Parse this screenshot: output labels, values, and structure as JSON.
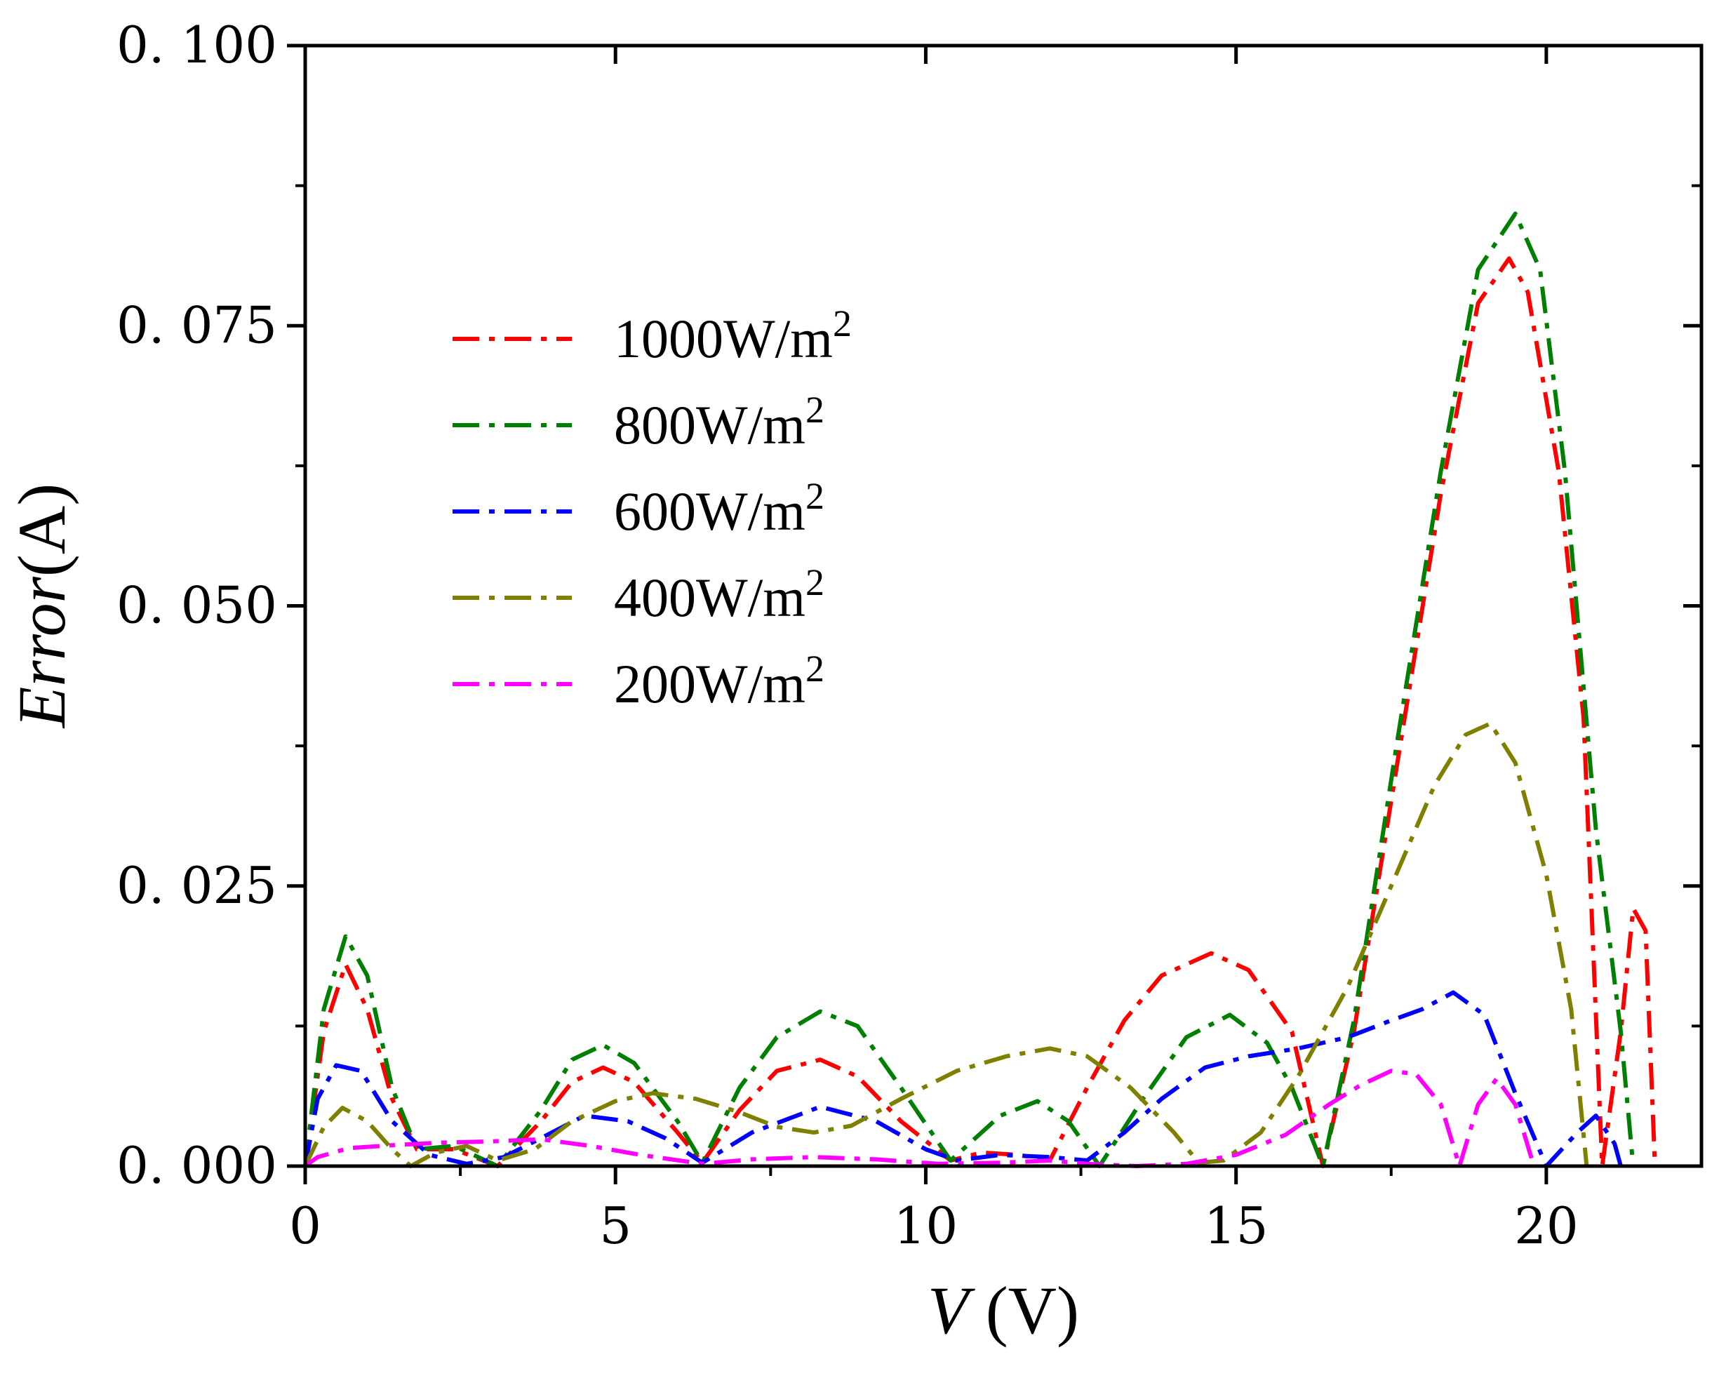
{
  "chart_data": {
    "type": "line",
    "title": "",
    "xlabel": {
      "var": "V",
      "unit": " (V)"
    },
    "ylabel": {
      "var": "Error",
      "unit": "(A)"
    },
    "xlim": [
      0,
      22.5
    ],
    "ylim": [
      0,
      0.1
    ],
    "xticks": [
      0,
      5,
      10,
      15,
      20
    ],
    "xtick_labels": [
      "0",
      "5",
      "10",
      "15",
      "20"
    ],
    "yticks": [
      0,
      0.025,
      0.05,
      0.075,
      0.1
    ],
    "ytick_labels": [
      "0. 000",
      "0. 025",
      "0. 050",
      "0. 075",
      "0. 100"
    ],
    "grid": false,
    "legend_position": "upper-left",
    "line_style": "dash-dot",
    "series": [
      {
        "name": "1000W/m2",
        "label_base": "1000W/m",
        "label_sup": "2",
        "color": "#ff0000",
        "points": [
          [
            0,
            0.0
          ],
          [
            0.3,
            0.012
          ],
          [
            0.65,
            0.018
          ],
          [
            1.0,
            0.014
          ],
          [
            1.4,
            0.006
          ],
          [
            1.8,
            0.0015
          ],
          [
            2.4,
            0.0015
          ],
          [
            3.1,
            0.0
          ],
          [
            3.8,
            0.004
          ],
          [
            4.3,
            0.0075
          ],
          [
            4.8,
            0.0088
          ],
          [
            5.3,
            0.0075
          ],
          [
            6.0,
            0.003
          ],
          [
            6.4,
            0.0003
          ],
          [
            7.0,
            0.005
          ],
          [
            7.6,
            0.0085
          ],
          [
            8.3,
            0.0095
          ],
          [
            8.9,
            0.008
          ],
          [
            9.6,
            0.004
          ],
          [
            10.4,
            0.0005
          ],
          [
            10.9,
            0.0012
          ],
          [
            11.5,
            0.001
          ],
          [
            12.0,
            0.0005
          ],
          [
            12.6,
            0.007
          ],
          [
            13.2,
            0.013
          ],
          [
            13.8,
            0.017
          ],
          [
            14.6,
            0.019
          ],
          [
            15.2,
            0.0175
          ],
          [
            15.9,
            0.012
          ],
          [
            16.4,
            0.0
          ],
          [
            16.9,
            0.012
          ],
          [
            17.6,
            0.036
          ],
          [
            18.3,
            0.06
          ],
          [
            18.9,
            0.077
          ],
          [
            19.4,
            0.081
          ],
          [
            19.7,
            0.078
          ],
          [
            20.2,
            0.062
          ],
          [
            20.6,
            0.04
          ],
          [
            20.9,
            0.0
          ],
          [
            21.2,
            0.012
          ],
          [
            21.4,
            0.023
          ],
          [
            21.6,
            0.021
          ],
          [
            21.75,
            0.0
          ]
        ]
      },
      {
        "name": "800W/m2",
        "label_base": "800W/m",
        "label_sup": "2",
        "color": "#008000",
        "points": [
          [
            0,
            0.0
          ],
          [
            0.3,
            0.014
          ],
          [
            0.65,
            0.0205
          ],
          [
            1.0,
            0.017
          ],
          [
            1.4,
            0.007
          ],
          [
            1.8,
            0.0015
          ],
          [
            2.4,
            0.0018
          ],
          [
            3.1,
            0.0
          ],
          [
            3.8,
            0.005
          ],
          [
            4.3,
            0.0095
          ],
          [
            4.8,
            0.0108
          ],
          [
            5.3,
            0.0092
          ],
          [
            6.0,
            0.004
          ],
          [
            6.4,
            0.0003
          ],
          [
            7.0,
            0.007
          ],
          [
            7.6,
            0.0115
          ],
          [
            8.3,
            0.0138
          ],
          [
            8.9,
            0.0125
          ],
          [
            9.6,
            0.007
          ],
          [
            10.4,
            0.0005
          ],
          [
            11.2,
            0.0045
          ],
          [
            11.8,
            0.0058
          ],
          [
            12.3,
            0.004
          ],
          [
            12.8,
            0.0
          ],
          [
            13.5,
            0.006
          ],
          [
            14.2,
            0.0115
          ],
          [
            14.9,
            0.0135
          ],
          [
            15.5,
            0.011
          ],
          [
            15.9,
            0.007
          ],
          [
            16.4,
            0.0
          ],
          [
            16.9,
            0.013
          ],
          [
            17.6,
            0.038
          ],
          [
            18.3,
            0.062
          ],
          [
            18.9,
            0.08
          ],
          [
            19.5,
            0.085
          ],
          [
            19.9,
            0.08
          ],
          [
            20.3,
            0.062
          ],
          [
            20.8,
            0.03
          ],
          [
            21.2,
            0.012
          ],
          [
            21.4,
            0.0
          ]
        ]
      },
      {
        "name": "600W/m2",
        "label_base": "600W/m",
        "label_sup": "2",
        "color": "#0000ff",
        "points": [
          [
            0,
            0.0
          ],
          [
            0.2,
            0.006
          ],
          [
            0.5,
            0.009
          ],
          [
            0.9,
            0.0085
          ],
          [
            1.4,
            0.004
          ],
          [
            2.0,
            0.001
          ],
          [
            2.6,
            0.0002
          ],
          [
            3.2,
            0.0008
          ],
          [
            3.8,
            0.0025
          ],
          [
            4.5,
            0.0045
          ],
          [
            5.2,
            0.004
          ],
          [
            5.8,
            0.0025
          ],
          [
            6.4,
            0.0003
          ],
          [
            7.2,
            0.003
          ],
          [
            8.3,
            0.0053
          ],
          [
            9.2,
            0.004
          ],
          [
            10.0,
            0.0015
          ],
          [
            10.5,
            0.0005
          ],
          [
            11.2,
            0.001
          ],
          [
            12.0,
            0.0008
          ],
          [
            12.6,
            0.0005
          ],
          [
            13.2,
            0.003
          ],
          [
            13.8,
            0.006
          ],
          [
            14.5,
            0.0088
          ],
          [
            15.2,
            0.0098
          ],
          [
            16.0,
            0.0105
          ],
          [
            16.8,
            0.0115
          ],
          [
            17.5,
            0.013
          ],
          [
            18.0,
            0.014
          ],
          [
            18.5,
            0.0155
          ],
          [
            19.0,
            0.0135
          ],
          [
            19.5,
            0.0065
          ],
          [
            20.0,
            0.0
          ],
          [
            20.5,
            0.003
          ],
          [
            20.8,
            0.0045
          ],
          [
            21.1,
            0.002
          ],
          [
            21.2,
            0.0
          ]
        ]
      },
      {
        "name": "400W/m2",
        "label_base": "400W/m",
        "label_sup": "2",
        "color": "#808000",
        "points": [
          [
            0,
            0.0
          ],
          [
            0.3,
            0.0035
          ],
          [
            0.6,
            0.0052
          ],
          [
            1.0,
            0.004
          ],
          [
            1.4,
            0.0015
          ],
          [
            1.7,
            0.0
          ],
          [
            2.1,
            0.0012
          ],
          [
            2.6,
            0.0018
          ],
          [
            3.1,
            0.0005
          ],
          [
            3.7,
            0.0015
          ],
          [
            4.3,
            0.004
          ],
          [
            5.0,
            0.0058
          ],
          [
            5.6,
            0.0065
          ],
          [
            6.3,
            0.006
          ],
          [
            7.0,
            0.0048
          ],
          [
            7.6,
            0.0035
          ],
          [
            8.2,
            0.003
          ],
          [
            8.8,
            0.0036
          ],
          [
            9.6,
            0.006
          ],
          [
            10.5,
            0.0085
          ],
          [
            11.3,
            0.0098
          ],
          [
            12.0,
            0.0105
          ],
          [
            12.6,
            0.0098
          ],
          [
            13.3,
            0.007
          ],
          [
            14.0,
            0.003
          ],
          [
            14.4,
            0.0003
          ],
          [
            14.8,
            0.0005
          ],
          [
            15.4,
            0.003
          ],
          [
            16.0,
            0.008
          ],
          [
            16.8,
            0.016
          ],
          [
            17.5,
            0.025
          ],
          [
            18.2,
            0.034
          ],
          [
            18.7,
            0.0385
          ],
          [
            19.1,
            0.0395
          ],
          [
            19.5,
            0.036
          ],
          [
            20.0,
            0.026
          ],
          [
            20.4,
            0.014
          ],
          [
            20.65,
            0.0
          ]
        ]
      },
      {
        "name": "200W/m2",
        "label_base": "200W/m",
        "label_sup": "2",
        "color": "#ff00ff",
        "points": [
          [
            0,
            0.0
          ],
          [
            0.2,
            0.0008
          ],
          [
            0.7,
            0.0016
          ],
          [
            1.5,
            0.0019
          ],
          [
            2.2,
            0.0021
          ],
          [
            3.0,
            0.0022
          ],
          [
            3.8,
            0.0024
          ],
          [
            4.6,
            0.0018
          ],
          [
            5.4,
            0.001
          ],
          [
            6.4,
            0.0002
          ],
          [
            7.2,
            0.0006
          ],
          [
            8.2,
            0.0008
          ],
          [
            9.2,
            0.0006
          ],
          [
            10.2,
            0.0002
          ],
          [
            11.2,
            0.0003
          ],
          [
            12.0,
            0.0005
          ],
          [
            12.6,
            0.0002
          ],
          [
            13.4,
            0.0
          ],
          [
            14.2,
            0.0002
          ],
          [
            15.0,
            0.001
          ],
          [
            15.8,
            0.0028
          ],
          [
            16.5,
            0.0055
          ],
          [
            17.0,
            0.0072
          ],
          [
            17.5,
            0.0085
          ],
          [
            17.9,
            0.0082
          ],
          [
            18.3,
            0.0055
          ],
          [
            18.6,
            0.0
          ],
          [
            18.9,
            0.0055
          ],
          [
            19.2,
            0.0078
          ],
          [
            19.5,
            0.0055
          ],
          [
            19.8,
            0.0
          ]
        ]
      }
    ]
  }
}
